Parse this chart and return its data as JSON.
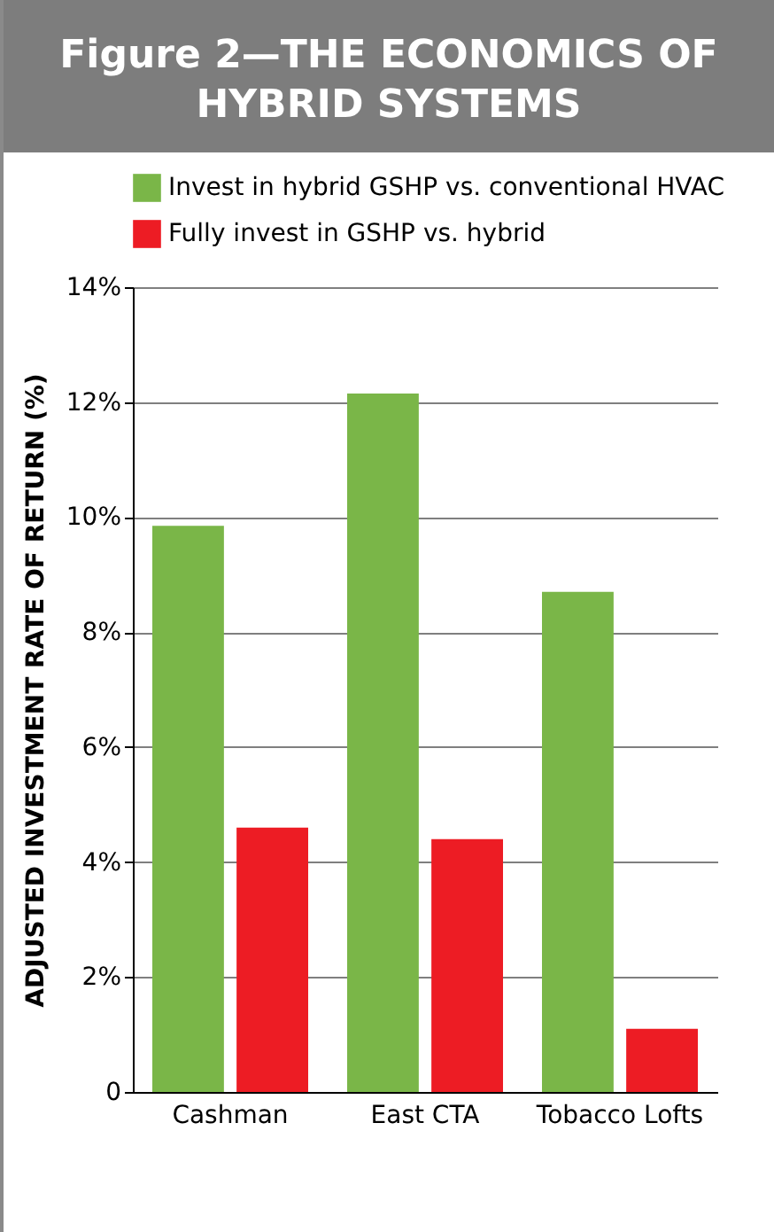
{
  "chart_data": {
    "type": "bar",
    "title": "Figure 2—THE ECONOMICS OF HYBRID SYSTEMS",
    "ylabel": "ADJUSTED INVESTMENT RATE OF RETURN (%)",
    "categories": [
      "Cashman",
      "East CTA",
      "Tobacco Lofts"
    ],
    "series": [
      {
        "name": "Invest in hybrid GSHP vs. conventional HVAC",
        "color": "#7ab648",
        "values": [
          9.85,
          12.15,
          8.7
        ]
      },
      {
        "name": "Fully invest in GSHP vs. hybrid",
        "color": "#ed1c24",
        "values": [
          4.6,
          4.4,
          1.1
        ]
      }
    ],
    "ylim": [
      0,
      14
    ],
    "yticks": [
      0,
      {
        "value": 2,
        "label": "2%"
      },
      {
        "value": 4,
        "label": "4%"
      },
      {
        "value": 6,
        "label": "6%"
      },
      {
        "value": 8,
        "label": "8%"
      },
      {
        "value": 10,
        "label": "10%"
      },
      {
        "value": 12,
        "label": "12%"
      },
      {
        "value": 14,
        "label": "14%"
      }
    ],
    "grid": "y",
    "legend": "top left"
  }
}
